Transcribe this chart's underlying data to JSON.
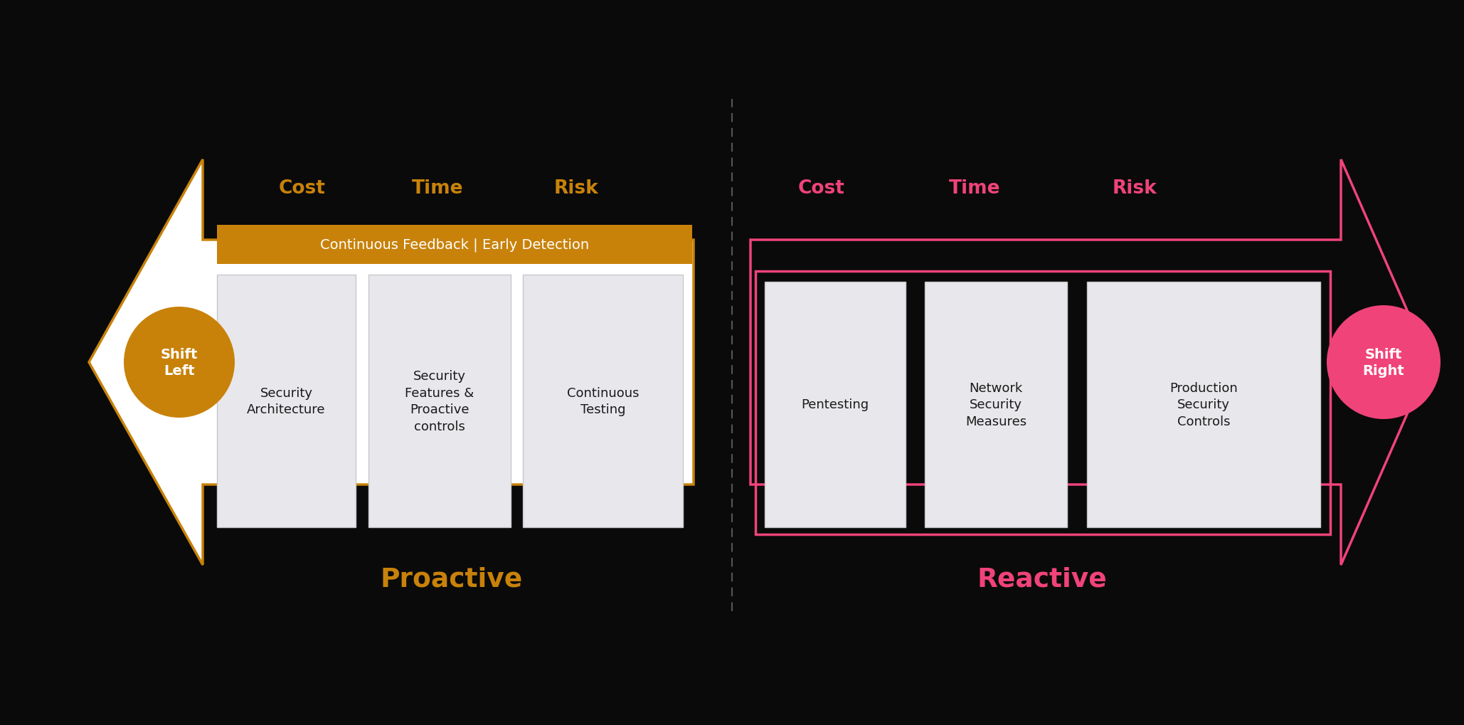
{
  "bg_color": "#0a0a0a",
  "left_arrow_color": "#ffffff",
  "left_arrow_edge_color": "#c8820a",
  "right_arrow_color": "#0a0a0a",
  "right_arrow_edge_color": "#f0437a",
  "orange_color": "#c8820a",
  "pink_color": "#f0437a",
  "box_fill_color": "#e8e8ec",
  "box_edge_color": "#c8c8cc",
  "orange_banner_color": "#c8820a",
  "divider_color": "#555555",
  "left_labels": [
    "Cost",
    "Time",
    "Risk"
  ],
  "right_labels": [
    "Cost",
    "Time",
    "Risk"
  ],
  "left_banner_text": "Continuous Feedback | Early Detection",
  "left_boxes": [
    "Security\nArchitecture",
    "Security\nFeatures &\nProactive\ncontrols",
    "Continuous\nTesting"
  ],
  "right_boxes": [
    "Pentesting",
    "Network\nSecurity\nMeasures",
    "Production\nSecurity\nControls"
  ],
  "left_circle_text": "Shift\nLeft",
  "right_circle_text": "Shift\nRight",
  "left_label": "Proactive",
  "right_label": "Reactive",
  "text_color_dark": "#1a1a1a",
  "text_color_light": "#ffffff"
}
